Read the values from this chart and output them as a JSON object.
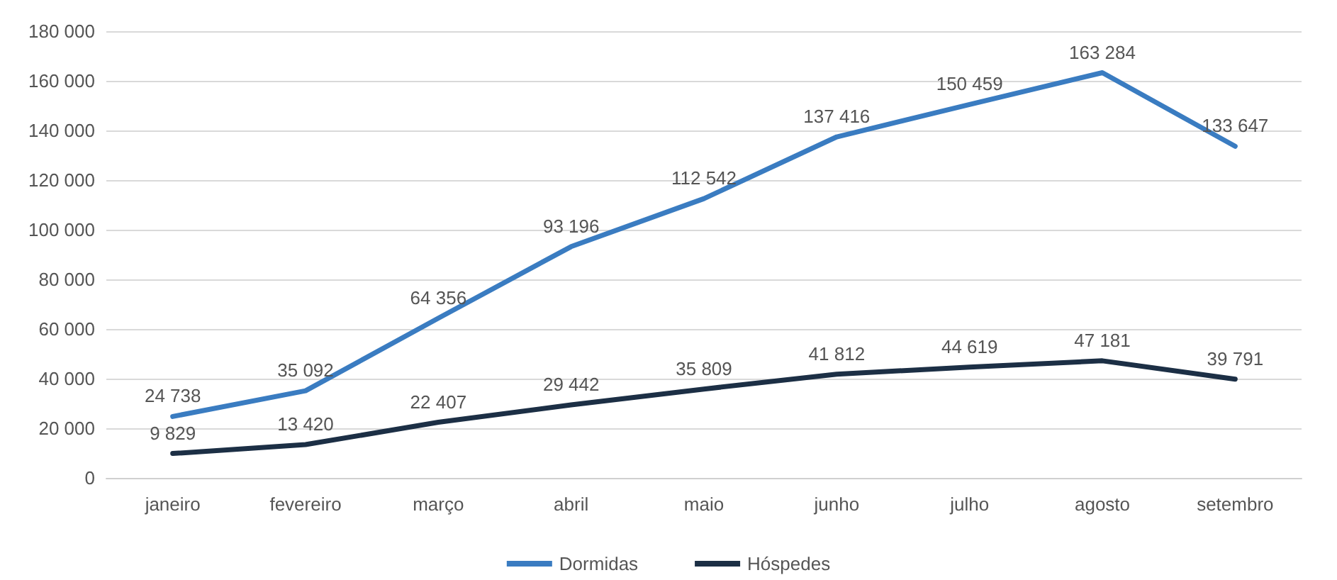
{
  "chart_data": {
    "type": "line",
    "categories": [
      "janeiro",
      "fevereiro",
      "março",
      "abril",
      "maio",
      "junho",
      "julho",
      "agosto",
      "setembro"
    ],
    "series": [
      {
        "name": "Dormidas",
        "color": "#3a7cc1",
        "values": [
          24738,
          35092,
          64356,
          93196,
          112542,
          137416,
          150459,
          163284,
          133647
        ]
      },
      {
        "name": "Hóspedes",
        "color": "#1c2f45",
        "values": [
          9829,
          13420,
          22407,
          29442,
          35809,
          41812,
          44619,
          47181,
          39791
        ]
      }
    ],
    "ylim": [
      0,
      180000
    ],
    "yticks": [
      0,
      20000,
      40000,
      60000,
      80000,
      100000,
      120000,
      140000,
      160000,
      180000
    ],
    "grid": "y",
    "legend": "bottom",
    "marker": "none",
    "line_style": "solid",
    "data_labels": true
  }
}
